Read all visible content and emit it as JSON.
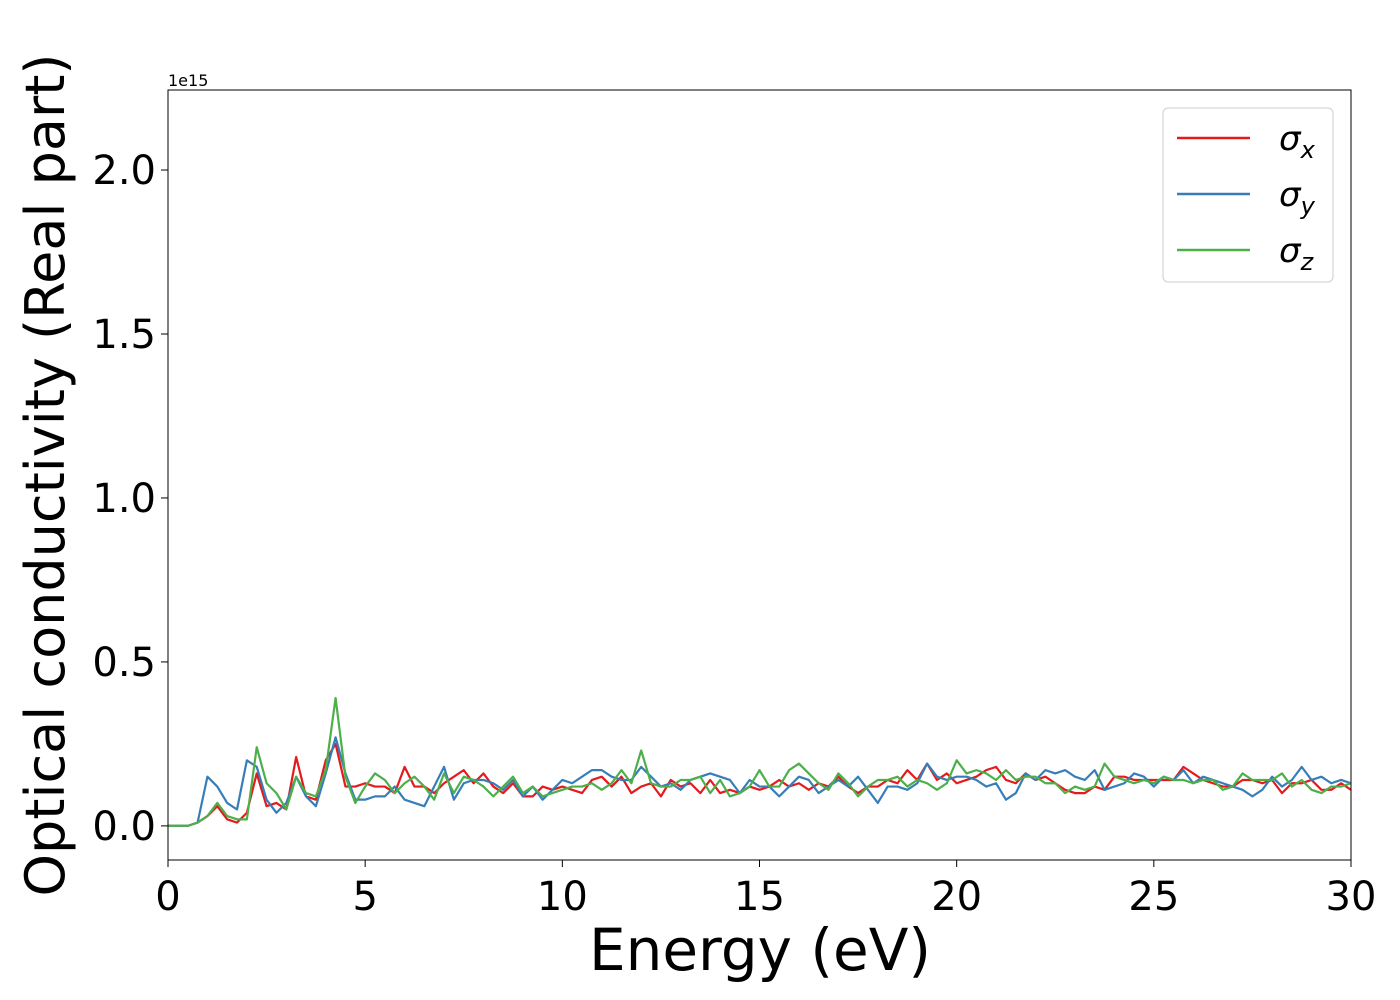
{
  "chart_data": {
    "type": "line",
    "xlabel": "Energy (eV)",
    "ylabel": "Optical conductivity (Real part)",
    "offset_label": "1e15",
    "xlim": [
      0,
      30
    ],
    "ylim": [
      -0.104,
      2.244
    ],
    "xticks": [
      0,
      5,
      10,
      15,
      20,
      25,
      30
    ],
    "yticks": [
      {
        "value": 0,
        "label": "0.0"
      },
      0.5,
      {
        "value": 1,
        "label": "1.0"
      },
      1.5,
      {
        "value": 2,
        "label": "2.0"
      }
    ],
    "grid": false,
    "legend": "upper right",
    "x": [
      0,
      0.25,
      0.5,
      0.75,
      1,
      1.25,
      1.5,
      1.75,
      2,
      2.25,
      2.5,
      2.75,
      3,
      3.25,
      3.5,
      3.75,
      4,
      4.25,
      4.5,
      4.75,
      5,
      5.25,
      5.5,
      5.75,
      6,
      6.25,
      6.5,
      6.75,
      7,
      7.25,
      7.5,
      7.75,
      8,
      8.25,
      8.5,
      8.75,
      9,
      9.25,
      9.5,
      9.75,
      10,
      10.25,
      10.5,
      10.75,
      11,
      11.25,
      11.5,
      11.75,
      12,
      12.25,
      12.5,
      12.75,
      13,
      13.25,
      13.5,
      13.75,
      14,
      14.25,
      14.5,
      14.75,
      15,
      15.25,
      15.5,
      15.75,
      16,
      16.25,
      16.5,
      16.75,
      17,
      17.25,
      17.5,
      17.75,
      18,
      18.25,
      18.5,
      18.75,
      19,
      19.25,
      19.5,
      19.75,
      20,
      20.25,
      20.5,
      20.75,
      21,
      21.25,
      21.5,
      21.75,
      22,
      22.25,
      22.5,
      22.75,
      23,
      23.25,
      23.5,
      23.75,
      24,
      24.25,
      24.5,
      24.75,
      25,
      25.25,
      25.5,
      25.75,
      26,
      26.25,
      26.5,
      26.75,
      27,
      27.25,
      27.5,
      27.75,
      28,
      28.25,
      28.5,
      28.75,
      29,
      29.25,
      29.5,
      29.75,
      30
    ],
    "series": [
      {
        "name": "σx",
        "color": "#e41a1c",
        "values": [
          0,
          0,
          0,
          0.01,
          0.03,
          0.06,
          0.02,
          0.01,
          0.04,
          0.16,
          0.06,
          0.07,
          0.05,
          0.21,
          0.09,
          0.08,
          0.2,
          0.25,
          0.12,
          0.12,
          0.13,
          0.12,
          0.12,
          0.1,
          0.18,
          0.12,
          0.12,
          0.1,
          0.13,
          0.15,
          0.17,
          0.13,
          0.16,
          0.12,
          0.1,
          0.13,
          0.09,
          0.09,
          0.12,
          0.11,
          0.12,
          0.11,
          0.1,
          0.14,
          0.15,
          0.12,
          0.15,
          0.1,
          0.12,
          0.13,
          0.09,
          0.14,
          0.12,
          0.13,
          0.1,
          0.14,
          0.1,
          0.11,
          0.1,
          0.12,
          0.11,
          0.12,
          0.14,
          0.12,
          0.13,
          0.11,
          0.13,
          0.12,
          0.15,
          0.12,
          0.1,
          0.12,
          0.12,
          0.14,
          0.13,
          0.17,
          0.14,
          0.19,
          0.14,
          0.16,
          0.13,
          0.14,
          0.15,
          0.17,
          0.18,
          0.14,
          0.13,
          0.16,
          0.14,
          0.15,
          0.13,
          0.11,
          0.1,
          0.1,
          0.12,
          0.11,
          0.15,
          0.15,
          0.14,
          0.14,
          0.14,
          0.14,
          0.14,
          0.18,
          0.16,
          0.14,
          0.13,
          0.12,
          0.12,
          0.14,
          0.14,
          0.13,
          0.14,
          0.1,
          0.13,
          0.13,
          0.14,
          0.11,
          0.11,
          0.13,
          0.11
        ]
      },
      {
        "name": "σy",
        "color": "#377eb8",
        "values": [
          0,
          0,
          0,
          0.01,
          0.15,
          0.12,
          0.07,
          0.05,
          0.2,
          0.18,
          0.08,
          0.04,
          0.07,
          0.15,
          0.09,
          0.06,
          0.16,
          0.27,
          0.16,
          0.08,
          0.08,
          0.09,
          0.09,
          0.12,
          0.08,
          0.07,
          0.06,
          0.12,
          0.18,
          0.08,
          0.13,
          0.14,
          0.14,
          0.13,
          0.11,
          0.14,
          0.09,
          0.12,
          0.08,
          0.11,
          0.14,
          0.13,
          0.15,
          0.17,
          0.17,
          0.15,
          0.14,
          0.14,
          0.18,
          0.15,
          0.12,
          0.13,
          0.11,
          0.14,
          0.15,
          0.16,
          0.15,
          0.14,
          0.1,
          0.14,
          0.12,
          0.12,
          0.09,
          0.12,
          0.15,
          0.14,
          0.1,
          0.12,
          0.14,
          0.12,
          0.15,
          0.11,
          0.07,
          0.12,
          0.12,
          0.11,
          0.13,
          0.19,
          0.15,
          0.14,
          0.15,
          0.15,
          0.14,
          0.12,
          0.13,
          0.08,
          0.1,
          0.16,
          0.14,
          0.17,
          0.16,
          0.17,
          0.15,
          0.14,
          0.17,
          0.11,
          0.12,
          0.13,
          0.16,
          0.15,
          0.12,
          0.15,
          0.14,
          0.17,
          0.13,
          0.15,
          0.14,
          0.13,
          0.12,
          0.11,
          0.09,
          0.11,
          0.15,
          0.12,
          0.14,
          0.18,
          0.14,
          0.15,
          0.13,
          0.14,
          0.13
        ]
      },
      {
        "name": "σz",
        "color": "#4daf4a",
        "values": [
          0,
          0,
          0,
          0.01,
          0.03,
          0.07,
          0.03,
          0.02,
          0.02,
          0.24,
          0.13,
          0.1,
          0.05,
          0.15,
          0.1,
          0.09,
          0.17,
          0.39,
          0.15,
          0.07,
          0.12,
          0.16,
          0.14,
          0.1,
          0.13,
          0.15,
          0.12,
          0.08,
          0.16,
          0.1,
          0.15,
          0.14,
          0.12,
          0.09,
          0.12,
          0.15,
          0.1,
          0.12,
          0.09,
          0.1,
          0.11,
          0.12,
          0.12,
          0.13,
          0.11,
          0.13,
          0.17,
          0.13,
          0.23,
          0.13,
          0.12,
          0.12,
          0.14,
          0.14,
          0.15,
          0.1,
          0.14,
          0.09,
          0.1,
          0.12,
          0.17,
          0.12,
          0.12,
          0.17,
          0.19,
          0.16,
          0.13,
          0.11,
          0.16,
          0.13,
          0.09,
          0.12,
          0.14,
          0.14,
          0.15,
          0.12,
          0.14,
          0.13,
          0.11,
          0.13,
          0.2,
          0.16,
          0.17,
          0.16,
          0.14,
          0.17,
          0.14,
          0.15,
          0.15,
          0.13,
          0.13,
          0.1,
          0.12,
          0.11,
          0.12,
          0.19,
          0.15,
          0.14,
          0.13,
          0.14,
          0.13,
          0.15,
          0.14,
          0.14,
          0.13,
          0.14,
          0.14,
          0.11,
          0.12,
          0.16,
          0.14,
          0.14,
          0.14,
          0.16,
          0.12,
          0.14,
          0.11,
          0.1,
          0.12,
          0.12,
          0.13
        ]
      }
    ]
  }
}
